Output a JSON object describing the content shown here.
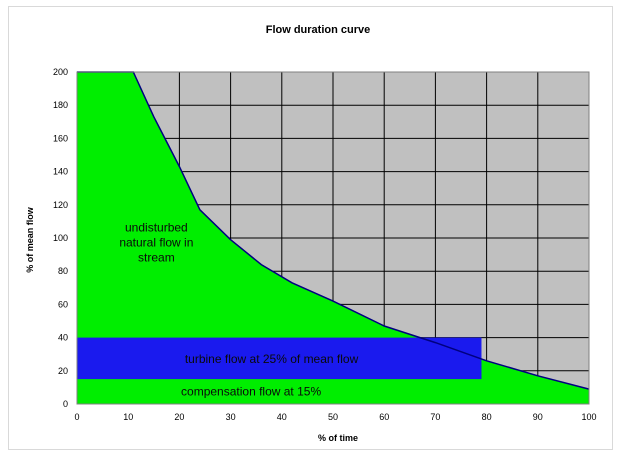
{
  "chart_data": {
    "type": "area",
    "title": "Flow duration curve",
    "xlabel": "% of time",
    "ylabel": "% of mean flow",
    "xlim": [
      0,
      100
    ],
    "ylim": [
      0,
      200
    ],
    "xticks": [
      "0",
      "10",
      "20",
      "30",
      "40",
      "50",
      "60",
      "70",
      "80",
      "90",
      "100"
    ],
    "yticks": [
      "0",
      "20",
      "40",
      "60",
      "80",
      "100",
      "120",
      "140",
      "160",
      "180",
      "200"
    ],
    "grid": true,
    "curve": {
      "x": [
        0,
        11,
        15,
        20,
        24,
        30,
        36,
        42,
        50,
        60,
        70,
        80,
        90,
        100
      ],
      "y": [
        200,
        200,
        173,
        143,
        117,
        99,
        84,
        73,
        62,
        47,
        37,
        26,
        17,
        9
      ]
    },
    "regions": [
      {
        "label_lines": [
          "undisturbed",
          "natural flow in",
          "stream"
        ],
        "color": "#00ee00"
      },
      {
        "label": "turbine flow at 25% of mean flow",
        "x_end": 79,
        "y_range": [
          15,
          40
        ],
        "color": "#1a1aee"
      },
      {
        "label": "compensation flow at 15%",
        "y_range": [
          0,
          15
        ],
        "color": "#00ee00"
      }
    ],
    "colors": {
      "exceedance": "#c0c0c0",
      "grid": "#000000",
      "curve": "#000080"
    }
  }
}
